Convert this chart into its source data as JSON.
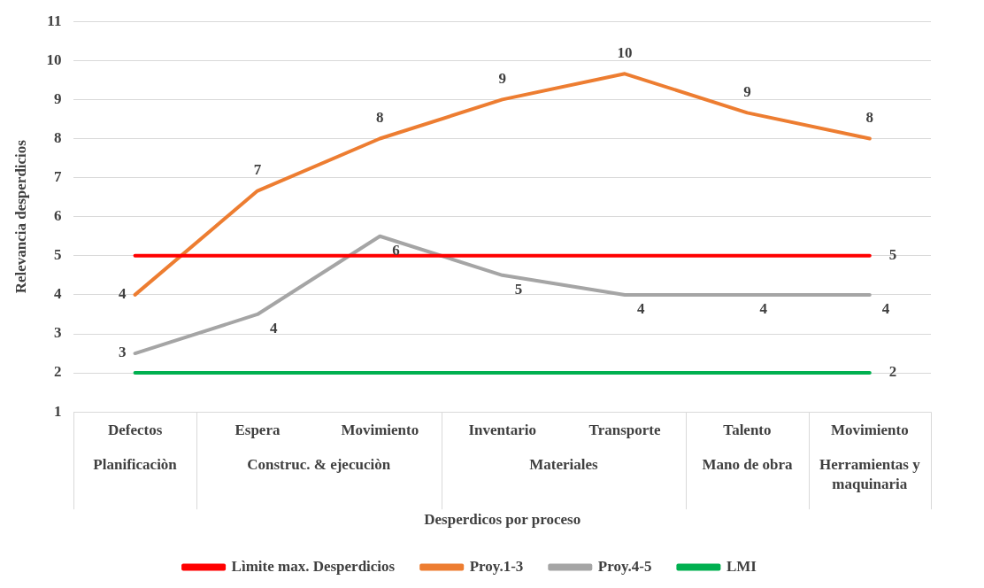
{
  "chart_data": {
    "type": "line",
    "xlabel": "Desperdicos por proceso",
    "ylabel": "Relevancia desperdicios",
    "categories": [
      "Defectos",
      "Espera",
      "Movimiento",
      "Inventario",
      "Transporte",
      "Talento",
      "Movimiento"
    ],
    "annotations": [
      "Planificaciòn",
      "Construc. & ejecuciòn",
      "Materiales",
      "Mano de obra",
      "Herramientas y maquinaria"
    ],
    "series": [
      {
        "name": "Lìmite max. Desperdicios",
        "color": "#ff0000",
        "values": [
          5,
          5,
          5,
          5,
          5,
          5,
          5
        ],
        "value_labels": [
          null,
          null,
          null,
          null,
          null,
          null,
          "5"
        ]
      },
      {
        "name": "Proy.1-3",
        "color": "#ed7d31",
        "values": [
          4,
          6.66,
          8,
          9,
          9.66,
          8.66,
          8
        ],
        "value_labels": [
          "4",
          "7",
          "8",
          "9",
          "10",
          "9",
          "8"
        ]
      },
      {
        "name": "Proy.4-5",
        "color": "#a5a5a5",
        "values": [
          2.5,
          3.5,
          5.5,
          4.5,
          4,
          4,
          4
        ],
        "value_labels": [
          "3",
          "4",
          "6",
          "5",
          "4",
          "4",
          "4"
        ]
      },
      {
        "name": "LMI",
        "color": "#00b050",
        "values": [
          2,
          2,
          2,
          2,
          2,
          2,
          2
        ],
        "value_labels": [
          null,
          null,
          null,
          null,
          null,
          null,
          "2"
        ]
      }
    ],
    "ylim": [
      1,
      11
    ],
    "yticks": [
      1,
      2,
      3,
      4,
      5,
      6,
      7,
      8,
      9,
      10,
      11
    ],
    "grid": "y",
    "legend": "bottom"
  }
}
